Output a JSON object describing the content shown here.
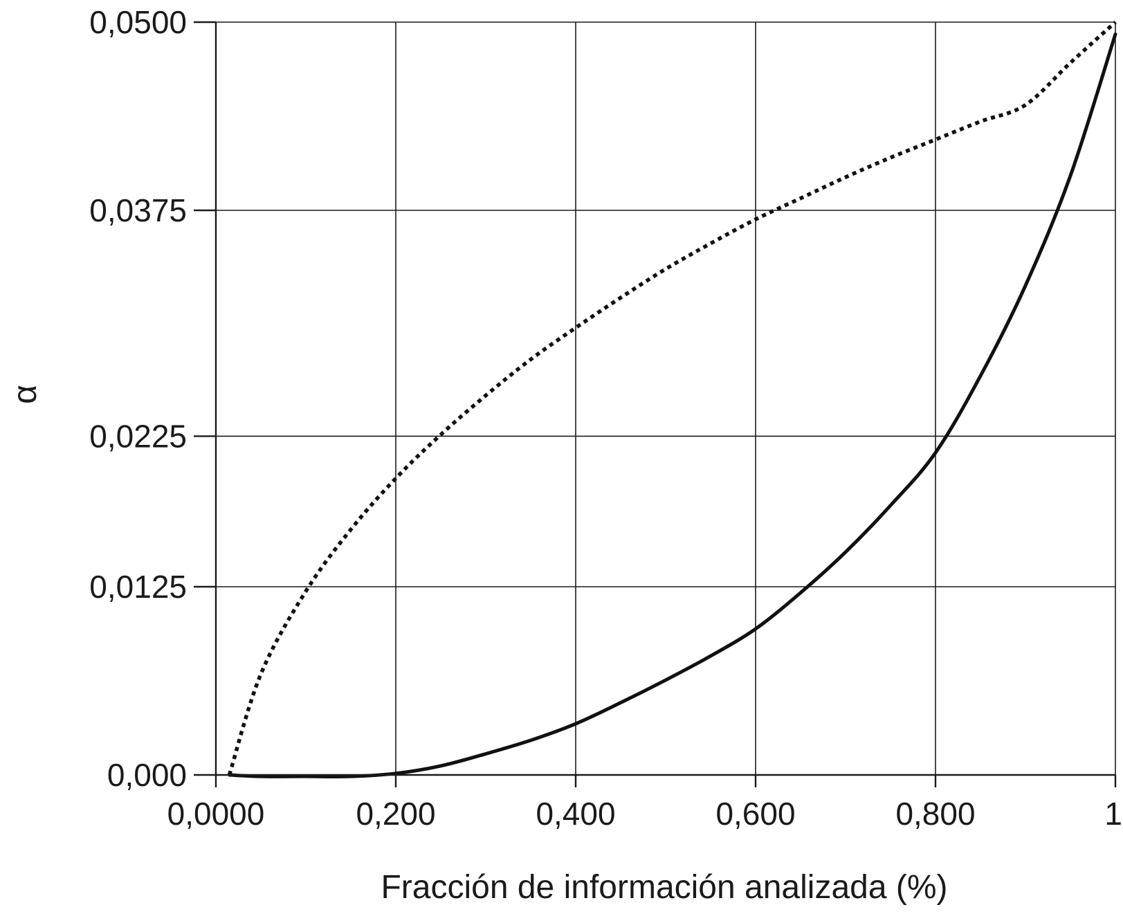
{
  "chart_data": {
    "type": "line",
    "xlabel": "Fracción de información analizada (%)",
    "ylabel": "α",
    "xlim": [
      0,
      1
    ],
    "ylim": [
      0,
      0.05
    ],
    "x_ticks": [
      {
        "value": 0,
        "label": "0,0000"
      },
      {
        "value": 0.2,
        "label": "0,200"
      },
      {
        "value": 0.4,
        "label": "0,400"
      },
      {
        "value": 0.6,
        "label": "0,600"
      },
      {
        "value": 0.8,
        "label": "0,800"
      },
      {
        "value": 1.0,
        "label": "1"
      }
    ],
    "y_ticks": [
      {
        "value": 0,
        "label": "0,000"
      },
      {
        "value": 0.0125,
        "label": "0,0125"
      },
      {
        "value": 0.0225,
        "label": "0,0225"
      },
      {
        "value": 0.0375,
        "label": "0,0375"
      },
      {
        "value": 0.05,
        "label": "0,0500"
      }
    ],
    "grid": true,
    "series": [
      {
        "style": "solid",
        "color": "#111111",
        "x": [
          0.015,
          0.05,
          0.1,
          0.15,
          0.2,
          0.25,
          0.3,
          0.35,
          0.4,
          0.45,
          0.5,
          0.55,
          0.6,
          0.65,
          0.7,
          0.75,
          0.8,
          0.85,
          0.9,
          0.95,
          1.0
        ],
        "y": [
          0.0,
          -0.0001,
          -0.0001,
          -0.0001,
          0.0001,
          0.0006,
          0.0014,
          0.0023,
          0.0034,
          0.0048,
          0.0063,
          0.0079,
          0.0097,
          0.0121,
          0.0148,
          0.0179,
          0.0214,
          0.0265,
          0.0325,
          0.0398,
          0.0492
        ]
      },
      {
        "style": "dotted",
        "color": "#111111",
        "x": [
          0.015,
          0.05,
          0.1,
          0.15,
          0.2,
          0.25,
          0.3,
          0.35,
          0.4,
          0.45,
          0.5,
          0.55,
          0.6,
          0.65,
          0.7,
          0.75,
          0.8,
          0.85,
          0.9,
          0.95,
          1.0
        ],
        "y": [
          0.0,
          0.0067,
          0.0122,
          0.0163,
          0.0197,
          0.0226,
          0.0252,
          0.0276,
          0.0297,
          0.0317,
          0.0336,
          0.0353,
          0.0369,
          0.0383,
          0.0397,
          0.041,
          0.0422,
          0.0434,
          0.0445,
          0.0473,
          0.05
        ]
      }
    ]
  }
}
